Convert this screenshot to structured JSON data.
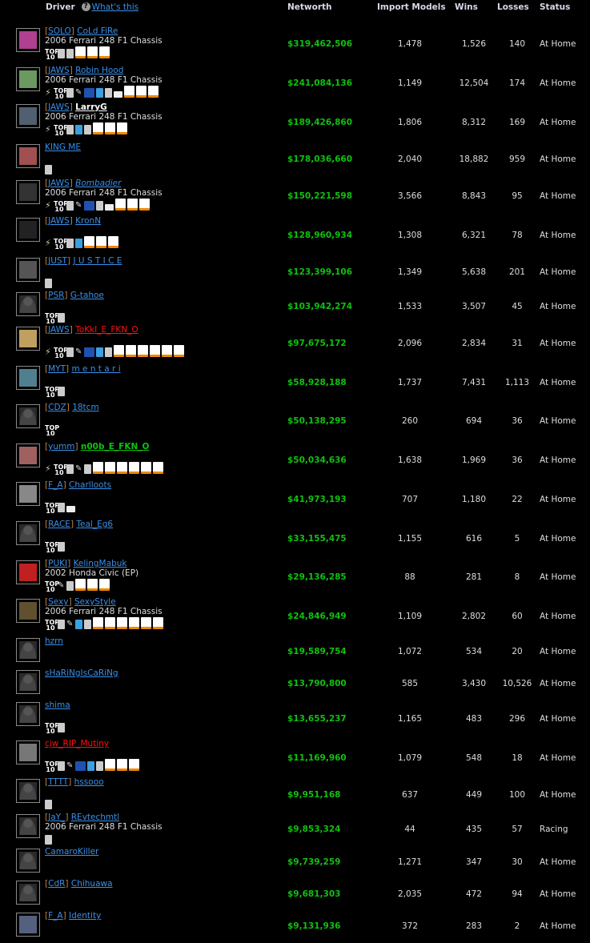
{
  "header": {
    "driver": "Driver",
    "whats_this": "What's this",
    "help_icon": "question-icon",
    "networth": "Networth",
    "import_models": "Import Models",
    "wins": "Wins",
    "losses": "Losses",
    "status": "Status"
  },
  "colors": {
    "networth": "#10c010",
    "link": "#3a8fe8",
    "red_name": "#ff1010",
    "green_name": "#10c010"
  },
  "rows": [
    {
      "clan": "SOLO",
      "name": "CoLd          FiRe",
      "car": "2006 Ferrari 248 F1 Chassis",
      "badges": [
        "top10",
        "thumb",
        "trophy",
        "car",
        "car",
        "car"
      ],
      "networth": "$319,462,506",
      "imports": "1,478",
      "wins": "1,526",
      "losses": "140",
      "status": "At Home",
      "style": "",
      "avatar": "#b04090"
    },
    {
      "clan": "JAWS",
      "name": "Robin  Hood",
      "car": "2006 Ferrari 248 F1 Chassis",
      "badges": [
        "lightning",
        "top10",
        "thumb",
        "wrench",
        "nca",
        "thumb-blue",
        "trophy",
        "ticket",
        "car",
        "car",
        "car"
      ],
      "networth": "$241,084,136",
      "imports": "1,149",
      "wins": "12,504",
      "losses": "174",
      "status": "At Home",
      "style": "",
      "avatar": "#6a9a60"
    },
    {
      "clan": "JAWS",
      "name": "LarryG",
      "car": "2006 Ferrari 248 F1 Chassis",
      "badges": [
        "lightning",
        "top10",
        "thumb",
        "thumb-blue",
        "trophy",
        "car",
        "car",
        "car"
      ],
      "networth": "$189,426,860",
      "imports": "1,806",
      "wins": "8,312",
      "losses": "169",
      "status": "At Home",
      "style": "white",
      "avatar": "#506070"
    },
    {
      "clan": "",
      "name": "KING   ME",
      "car": "",
      "badges": [
        "trophy"
      ],
      "networth": "$178,036,660",
      "imports": "2,040",
      "wins": "18,882",
      "losses": "959",
      "status": "At Home",
      "style": "",
      "avatar": "#a05050"
    },
    {
      "clan": "JAWS",
      "name": "Bombadier",
      "car": "2006 Ferrari 248 F1 Chassis",
      "badges": [
        "lightning",
        "top10",
        "thumb",
        "wrench",
        "nca",
        "trophy",
        "ticket",
        "car",
        "car",
        "car"
      ],
      "networth": "$150,221,598",
      "imports": "3,566",
      "wins": "8,843",
      "losses": "95",
      "status": "At Home",
      "style": "italic",
      "avatar": "#333"
    },
    {
      "clan": "JAWS",
      "name": "KronN",
      "car": "",
      "badges": [
        "lightning",
        "top10",
        "thumb",
        "thumb-blue",
        "car",
        "car",
        "car"
      ],
      "networth": "$128,960,934",
      "imports": "1,308",
      "wins": "6,321",
      "losses": "78",
      "status": "At Home",
      "style": "",
      "avatar": "#222"
    },
    {
      "clan": "JUST",
      "name": "J U S T I C E",
      "car": "",
      "badges": [
        "trophy"
      ],
      "networth": "$123,399,106",
      "imports": "1,349",
      "wins": "5,638",
      "losses": "201",
      "status": "At Home",
      "style": "",
      "avatar": "#555"
    },
    {
      "clan": "PSR",
      "name": "G-tahoe",
      "car": "",
      "badges": [
        "top10",
        "trophy"
      ],
      "networth": "$103,942,274",
      "imports": "1,533",
      "wins": "3,507",
      "losses": "45",
      "status": "At Home",
      "style": "",
      "avatar": ""
    },
    {
      "clan": "JAWS",
      "name": "ToKkI_E_FKN_O",
      "car": "",
      "badges": [
        "lightning",
        "top10",
        "thumb",
        "wrench",
        "nca",
        "thumb-blue",
        "trophy",
        "car",
        "car",
        "car",
        "car",
        "car",
        "car"
      ],
      "networth": "$97,675,172",
      "imports": "2,096",
      "wins": "2,834",
      "losses": "31",
      "status": "At Home",
      "style": "red",
      "avatar": "#c0a060"
    },
    {
      "clan": "MYT",
      "name": "m e n t a r i",
      "car": "",
      "badges": [
        "top10",
        "trophy"
      ],
      "networth": "$58,928,188",
      "imports": "1,737",
      "wins": "7,431",
      "losses": "1,113",
      "status": "At Home",
      "style": "",
      "avatar": "#508090"
    },
    {
      "clan": "CDZ",
      "name": "18tcm",
      "car": "",
      "badges": [
        "top10"
      ],
      "networth": "$50,138,295",
      "imports": "260",
      "wins": "694",
      "losses": "36",
      "status": "At Home",
      "style": "",
      "avatar": ""
    },
    {
      "clan": "yumm",
      "name": "n00b_E_FKN_O",
      "car": "",
      "badges": [
        "lightning",
        "top10",
        "thumb",
        "wrench",
        "trophy",
        "car",
        "car",
        "car",
        "car",
        "car",
        "car"
      ],
      "networth": "$50,034,636",
      "imports": "1,638",
      "wins": "1,969",
      "losses": "36",
      "status": "At Home",
      "style": "green",
      "avatar": "#a06060"
    },
    {
      "clan": "F_A",
      "name": "Charlloots",
      "car": "",
      "badges": [
        "top10",
        "trophy",
        "ticket"
      ],
      "networth": "$41,973,193",
      "imports": "707",
      "wins": "1,180",
      "losses": "22",
      "status": "At Home",
      "style": "",
      "avatar": "#888"
    },
    {
      "clan": "RACE",
      "name": "Teal_Eg6",
      "car": "",
      "badges": [
        "top10",
        "trophy"
      ],
      "networth": "$33,155,475",
      "imports": "1,155",
      "wins": "616",
      "losses": "5",
      "status": "At Home",
      "style": "",
      "avatar": ""
    },
    {
      "clan": "PUKI",
      "name": "KelingMabuk",
      "car": "2002 Honda Civic (EP)",
      "badges": [
        "top10",
        "wrench",
        "trophy",
        "car",
        "car",
        "car"
      ],
      "networth": "$29,136,285",
      "imports": "88",
      "wins": "281",
      "losses": "8",
      "status": "At Home",
      "style": "",
      "avatar": "#c02020"
    },
    {
      "clan": "Sexy",
      "name": "SexyStyle",
      "car": "2006 Ferrari 248 F1 Chassis",
      "badges": [
        "top10",
        "thumb",
        "wrench",
        "thumb-blue",
        "trophy",
        "car",
        "car",
        "car",
        "car",
        "car",
        "car"
      ],
      "networth": "$24,846,949",
      "imports": "1,109",
      "wins": "2,802",
      "losses": "60",
      "status": "At Home",
      "style": "",
      "avatar": "#605030"
    },
    {
      "clan": "",
      "name": "hzrn",
      "car": "",
      "badges": [],
      "networth": "$19,589,754",
      "imports": "1,072",
      "wins": "534",
      "losses": "20",
      "status": "At Home",
      "style": "",
      "avatar": ""
    },
    {
      "clan": "",
      "name": "sHaRiNgIsCaRiNg",
      "car": "",
      "badges": [],
      "networth": "$13,790,800",
      "imports": "585",
      "wins": "3,430",
      "losses": "10,526",
      "status": "At Home",
      "style": "",
      "avatar": ""
    },
    {
      "clan": "",
      "name": "shima",
      "car": "",
      "badges": [
        "top10",
        "trophy"
      ],
      "networth": "$13,655,237",
      "imports": "1,165",
      "wins": "483",
      "losses": "296",
      "status": "At Home",
      "style": "",
      "avatar": ""
    },
    {
      "clan": "",
      "name": "cjw_RIP_Mutiny",
      "car": "",
      "badges": [
        "top10",
        "thumb",
        "wrench",
        "nca",
        "thumb-blue",
        "trophy",
        "car",
        "car",
        "car"
      ],
      "networth": "$11,169,960",
      "imports": "1,079",
      "wins": "548",
      "losses": "18",
      "status": "At Home",
      "style": "red",
      "avatar": "#777"
    },
    {
      "clan": "TTTT",
      "name": "hssooo",
      "car": "",
      "badges": [
        "trophy"
      ],
      "networth": "$9,951,168",
      "imports": "637",
      "wins": "449",
      "losses": "100",
      "status": "At Home",
      "style": "",
      "avatar": ""
    },
    {
      "clan": "JaY_",
      "name": "REvtechmtl",
      "car": "2006 Ferrari 248 F1 Chassis",
      "badges": [
        "trophy"
      ],
      "networth": "$9,853,324",
      "imports": "44",
      "wins": "435",
      "losses": "57",
      "status": "Racing",
      "style": "",
      "avatar": ""
    },
    {
      "clan": "",
      "name": "CamaroKiller",
      "car": "",
      "badges": [],
      "networth": "$9,739,259",
      "imports": "1,271",
      "wins": "347",
      "losses": "30",
      "status": "At Home",
      "style": "",
      "avatar": ""
    },
    {
      "clan": "CdR",
      "name": "Chihuawa",
      "car": "",
      "badges": [],
      "networth": "$9,681,303",
      "imports": "2,035",
      "wins": "472",
      "losses": "94",
      "status": "At Home",
      "style": "",
      "avatar": ""
    },
    {
      "clan": "F_A",
      "name": "Identity",
      "car": "",
      "badges": [],
      "networth": "$9,131,936",
      "imports": "372",
      "wins": "283",
      "losses": "2",
      "status": "At Home",
      "style": "",
      "avatar": "#556080"
    }
  ]
}
